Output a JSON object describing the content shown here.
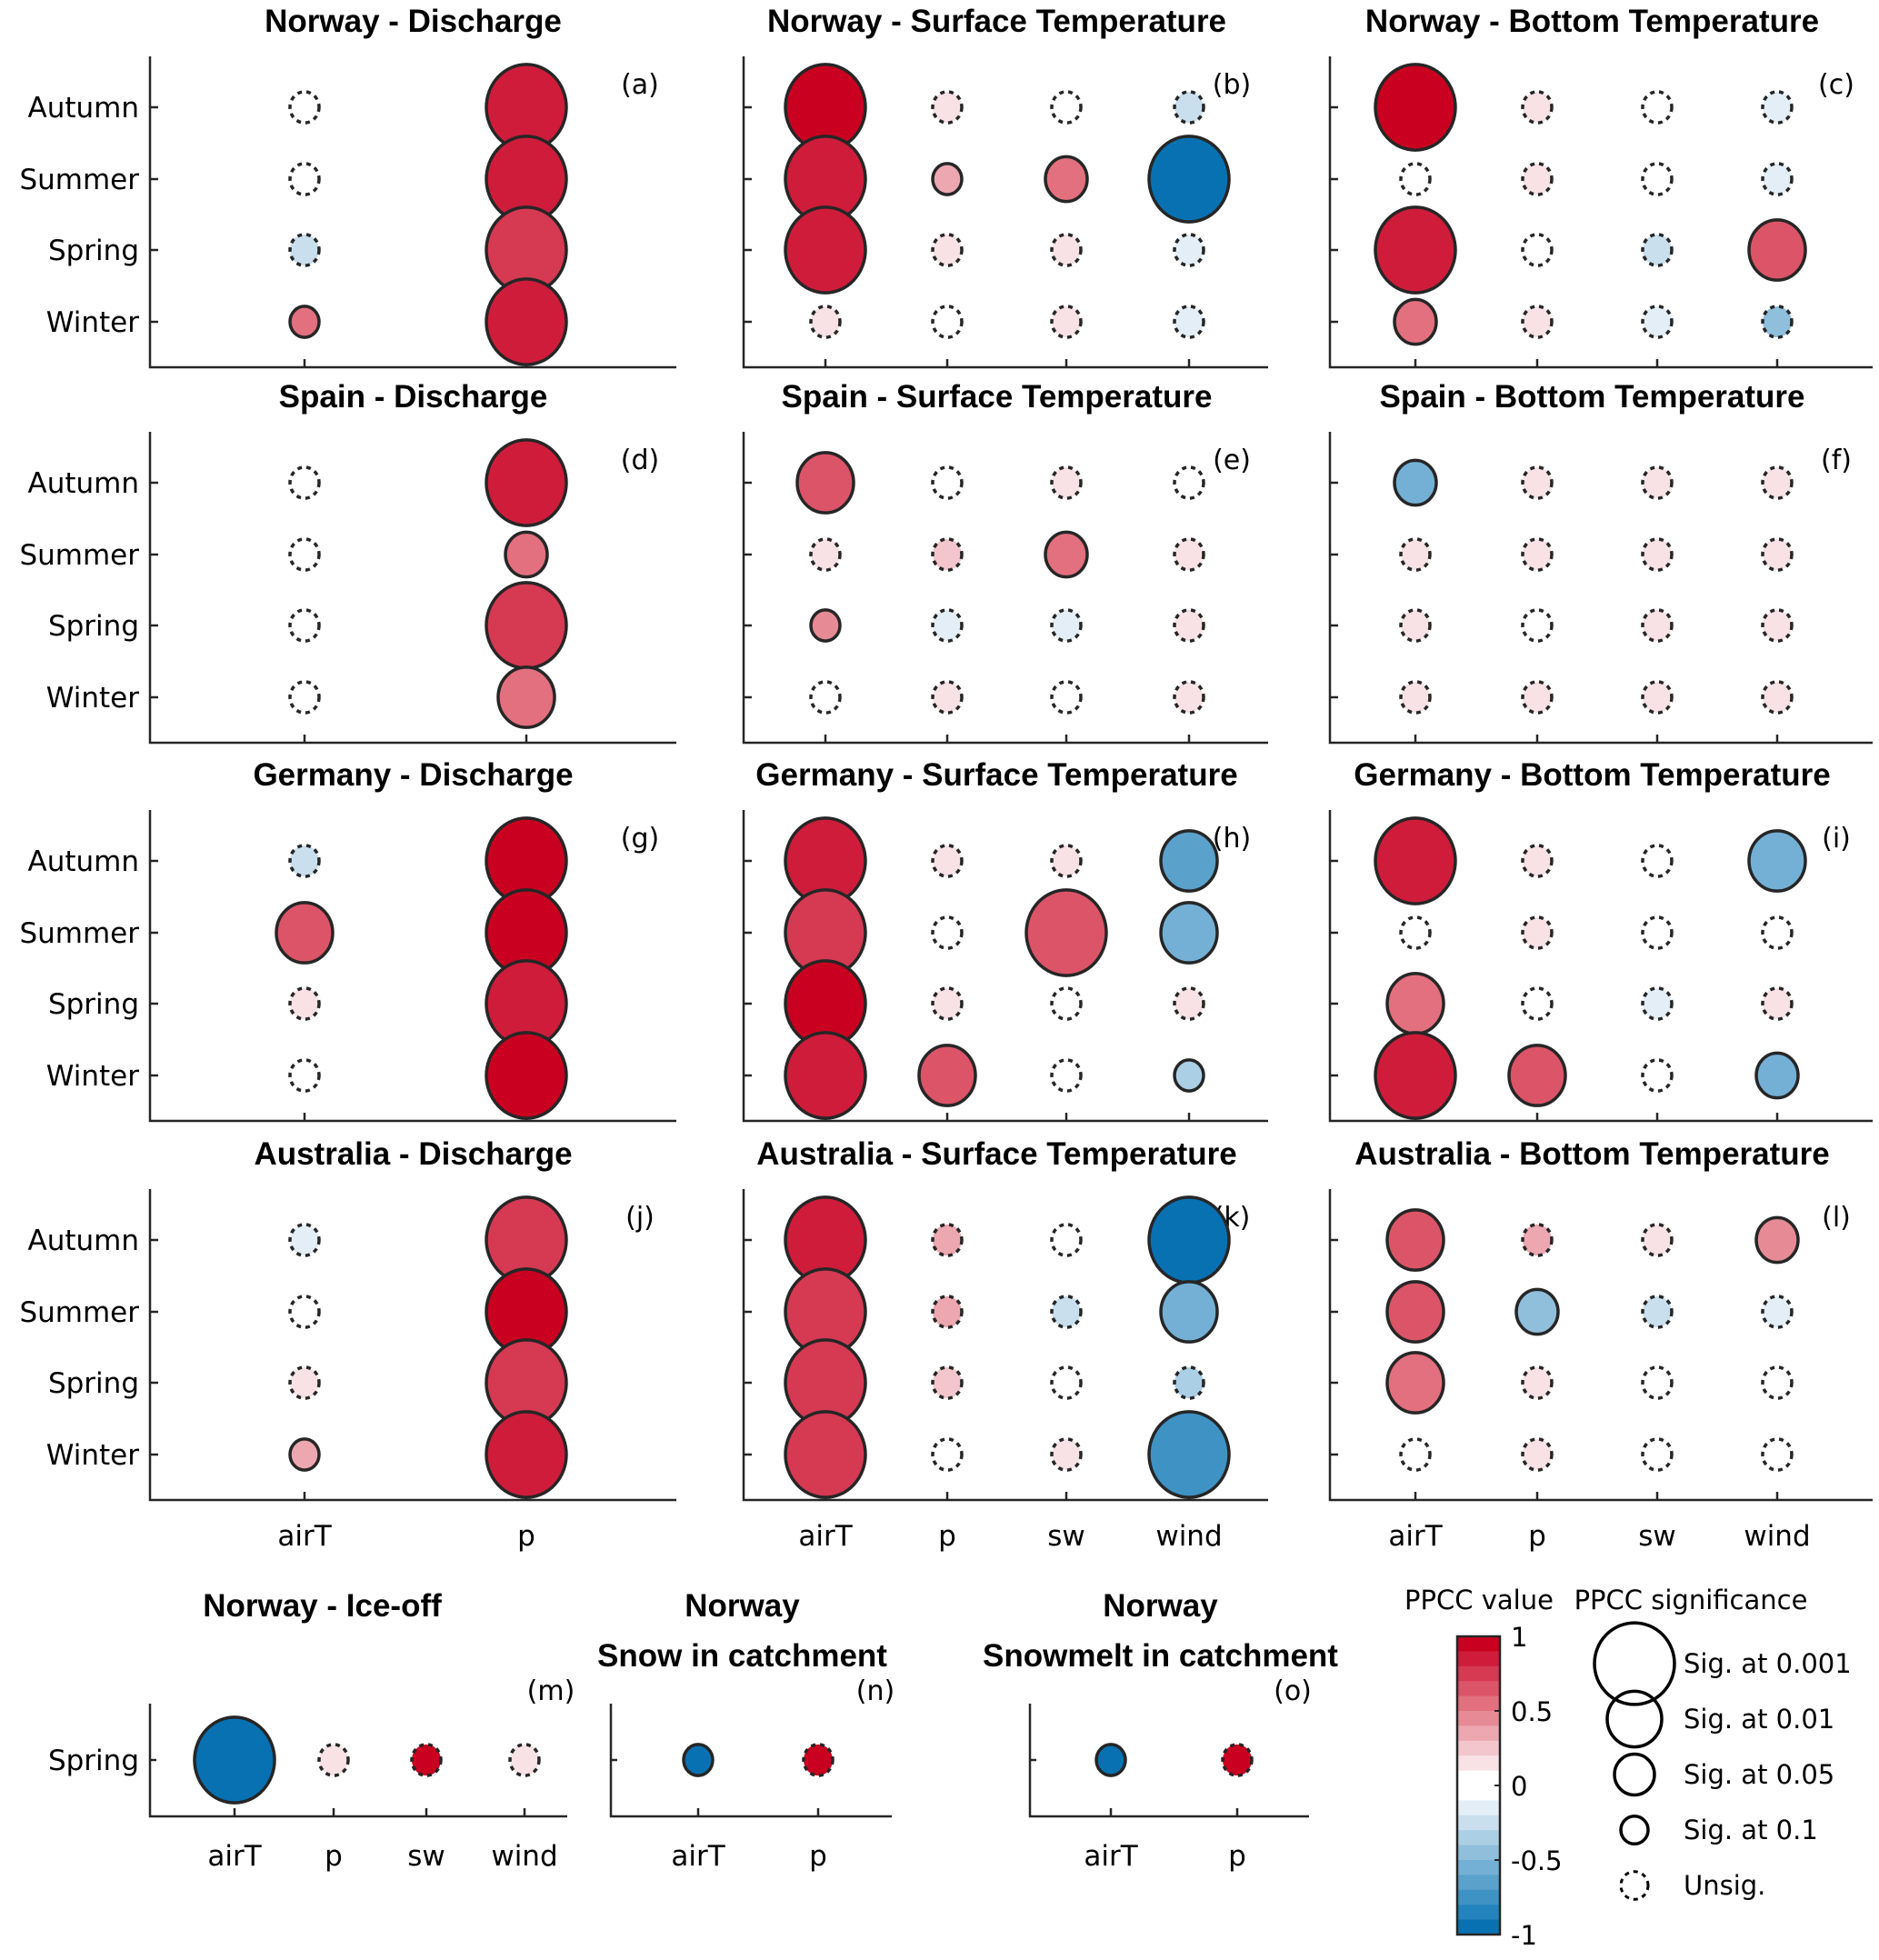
{
  "chart_data": {
    "type": "scatter",
    "encoding": "bubble grid: color = PPCC value (-1 to 1), size/outline = PPCC significance",
    "seasons": [
      "Winter",
      "Spring",
      "Summer",
      "Autumn"
    ],
    "significance_levels": [
      "0.001",
      "0.01",
      "0.05",
      "0.1",
      "unsig"
    ],
    "panels": [
      {
        "id": "a",
        "label": "(a)",
        "title": "Norway - Discharge",
        "x": [
          "airT",
          "p"
        ],
        "show_yticklabels": true,
        "show_xticklabels": false,
        "cells": {
          "Autumn": [
            [
              0.0,
              "unsig"
            ],
            [
              0.9,
              "0.001"
            ]
          ],
          "Summer": [
            [
              0.0,
              "unsig"
            ],
            [
              0.9,
              "0.001"
            ]
          ],
          "Spring": [
            [
              -0.2,
              "unsig"
            ],
            [
              0.8,
              "0.001"
            ]
          ],
          "Winter": [
            [
              0.6,
              "0.1"
            ],
            [
              0.9,
              "0.001"
            ]
          ]
        }
      },
      {
        "id": "b",
        "label": "(b)",
        "title": "Norway - Surface Temperature",
        "x": [
          "airT",
          "p",
          "sw",
          "wind"
        ],
        "show_yticklabels": false,
        "show_xticklabels": false,
        "cells": {
          "Autumn": [
            [
              1.0,
              "0.001"
            ],
            [
              0.2,
              "unsig"
            ],
            [
              0.0,
              "unsig"
            ],
            [
              -0.2,
              "unsig"
            ]
          ],
          "Summer": [
            [
              0.9,
              "0.001"
            ],
            [
              0.4,
              "0.1"
            ],
            [
              0.6,
              "0.05"
            ],
            [
              -0.9,
              "0.001"
            ]
          ],
          "Spring": [
            [
              0.9,
              "0.001"
            ],
            [
              0.1,
              "unsig"
            ],
            [
              0.1,
              "unsig"
            ],
            [
              -0.1,
              "unsig"
            ]
          ],
          "Winter": [
            [
              0.1,
              "unsig"
            ],
            [
              0.0,
              "unsig"
            ],
            [
              0.1,
              "unsig"
            ],
            [
              -0.1,
              "unsig"
            ]
          ]
        }
      },
      {
        "id": "c",
        "label": "(c)",
        "title": "Norway - Bottom Temperature",
        "x": [
          "airT",
          "p",
          "sw",
          "wind"
        ],
        "show_yticklabels": false,
        "show_xticklabels": false,
        "cells": {
          "Autumn": [
            [
              1.0,
              "0.001"
            ],
            [
              0.2,
              "unsig"
            ],
            [
              0.0,
              "unsig"
            ],
            [
              -0.1,
              "unsig"
            ]
          ],
          "Summer": [
            [
              0.0,
              "unsig"
            ],
            [
              0.2,
              "unsig"
            ],
            [
              0.0,
              "unsig"
            ],
            [
              -0.1,
              "unsig"
            ]
          ],
          "Spring": [
            [
              0.9,
              "0.001"
            ],
            [
              0.0,
              "unsig"
            ],
            [
              -0.2,
              "unsig"
            ],
            [
              0.7,
              "0.01"
            ]
          ],
          "Winter": [
            [
              0.6,
              "0.05"
            ],
            [
              0.1,
              "unsig"
            ],
            [
              -0.1,
              "unsig"
            ],
            [
              -0.4,
              "unsig"
            ]
          ]
        }
      },
      {
        "id": "d",
        "label": "(d)",
        "title": "Spain - Discharge",
        "x": [
          "airT",
          "p"
        ],
        "show_yticklabels": true,
        "show_xticklabels": false,
        "cells": {
          "Autumn": [
            [
              0.0,
              "unsig"
            ],
            [
              0.9,
              "0.001"
            ]
          ],
          "Summer": [
            [
              0.0,
              "unsig"
            ],
            [
              0.6,
              "0.05"
            ]
          ],
          "Spring": [
            [
              0.0,
              "unsig"
            ],
            [
              0.8,
              "0.001"
            ]
          ],
          "Winter": [
            [
              0.0,
              "unsig"
            ],
            [
              0.6,
              "0.01"
            ]
          ]
        }
      },
      {
        "id": "e",
        "label": "(e)",
        "title": "Spain - Surface Temperature",
        "x": [
          "airT",
          "p",
          "sw",
          "wind"
        ],
        "show_yticklabels": false,
        "show_xticklabels": false,
        "cells": {
          "Autumn": [
            [
              0.7,
              "0.01"
            ],
            [
              0.0,
              "unsig"
            ],
            [
              0.2,
              "unsig"
            ],
            [
              0.0,
              "unsig"
            ]
          ],
          "Summer": [
            [
              0.1,
              "unsig"
            ],
            [
              0.3,
              "unsig"
            ],
            [
              0.6,
              "0.05"
            ],
            [
              0.1,
              "unsig"
            ]
          ],
          "Spring": [
            [
              0.5,
              "0.1"
            ],
            [
              -0.1,
              "unsig"
            ],
            [
              -0.1,
              "unsig"
            ],
            [
              0.1,
              "unsig"
            ]
          ],
          "Winter": [
            [
              0.0,
              "unsig"
            ],
            [
              0.2,
              "unsig"
            ],
            [
              0.0,
              "unsig"
            ],
            [
              0.1,
              "unsig"
            ]
          ]
        }
      },
      {
        "id": "f",
        "label": "(f)",
        "title": "Spain - Bottom Temperature",
        "x": [
          "airT",
          "p",
          "sw",
          "wind"
        ],
        "show_yticklabels": false,
        "show_xticklabels": false,
        "cells": {
          "Autumn": [
            [
              -0.5,
              "0.05"
            ],
            [
              0.1,
              "unsig"
            ],
            [
              0.2,
              "unsig"
            ],
            [
              0.1,
              "unsig"
            ]
          ],
          "Summer": [
            [
              0.1,
              "unsig"
            ],
            [
              0.2,
              "unsig"
            ],
            [
              0.1,
              "unsig"
            ],
            [
              0.1,
              "unsig"
            ]
          ],
          "Spring": [
            [
              0.1,
              "unsig"
            ],
            [
              0.0,
              "unsig"
            ],
            [
              0.1,
              "unsig"
            ],
            [
              0.1,
              "unsig"
            ]
          ],
          "Winter": [
            [
              0.2,
              "unsig"
            ],
            [
              0.1,
              "unsig"
            ],
            [
              0.1,
              "unsig"
            ],
            [
              0.1,
              "unsig"
            ]
          ]
        }
      },
      {
        "id": "g",
        "label": "(g)",
        "title": "Germany - Discharge",
        "x": [
          "airT",
          "p"
        ],
        "show_yticklabels": true,
        "show_xticklabels": false,
        "cells": {
          "Autumn": [
            [
              -0.2,
              "unsig"
            ],
            [
              1.0,
              "0.001"
            ]
          ],
          "Summer": [
            [
              0.7,
              "0.01"
            ],
            [
              1.0,
              "0.001"
            ]
          ],
          "Spring": [
            [
              0.2,
              "unsig"
            ],
            [
              0.9,
              "0.001"
            ]
          ],
          "Winter": [
            [
              0.0,
              "unsig"
            ],
            [
              1.0,
              "0.001"
            ]
          ]
        }
      },
      {
        "id": "h",
        "label": "(h)",
        "title": "Germany - Surface Temperature",
        "x": [
          "airT",
          "p",
          "sw",
          "wind"
        ],
        "show_yticklabels": false,
        "show_xticklabels": false,
        "cells": {
          "Autumn": [
            [
              0.9,
              "0.001"
            ],
            [
              0.2,
              "unsig"
            ],
            [
              0.1,
              "unsig"
            ],
            [
              -0.6,
              "0.01"
            ]
          ],
          "Summer": [
            [
              0.8,
              "0.001"
            ],
            [
              0.0,
              "unsig"
            ],
            [
              0.7,
              "0.001"
            ],
            [
              -0.5,
              "0.01"
            ]
          ],
          "Spring": [
            [
              1.0,
              "0.001"
            ],
            [
              0.1,
              "unsig"
            ],
            [
              0.0,
              "unsig"
            ],
            [
              0.1,
              "unsig"
            ]
          ],
          "Winter": [
            [
              0.9,
              "0.001"
            ],
            [
              0.7,
              "0.01"
            ],
            [
              0.0,
              "unsig"
            ],
            [
              -0.3,
              "0.1"
            ]
          ]
        }
      },
      {
        "id": "i",
        "label": "(i)",
        "title": "Germany - Bottom Temperature",
        "x": [
          "airT",
          "p",
          "sw",
          "wind"
        ],
        "show_yticklabels": false,
        "show_xticklabels": false,
        "cells": {
          "Autumn": [
            [
              0.9,
              "0.001"
            ],
            [
              0.1,
              "unsig"
            ],
            [
              0.0,
              "unsig"
            ],
            [
              -0.5,
              "0.01"
            ]
          ],
          "Summer": [
            [
              0.0,
              "unsig"
            ],
            [
              0.2,
              "unsig"
            ],
            [
              0.0,
              "unsig"
            ],
            [
              0.0,
              "unsig"
            ]
          ],
          "Spring": [
            [
              0.6,
              "0.01"
            ],
            [
              0.0,
              "unsig"
            ],
            [
              -0.1,
              "unsig"
            ],
            [
              0.2,
              "unsig"
            ]
          ],
          "Winter": [
            [
              0.9,
              "0.001"
            ],
            [
              0.7,
              "0.01"
            ],
            [
              0.0,
              "unsig"
            ],
            [
              -0.5,
              "0.05"
            ]
          ]
        }
      },
      {
        "id": "j",
        "label": "(j)",
        "title": "Australia - Discharge",
        "x": [
          "airT",
          "p"
        ],
        "show_yticklabels": true,
        "show_xticklabels": true,
        "cells": {
          "Autumn": [
            [
              -0.1,
              "unsig"
            ],
            [
              0.8,
              "0.001"
            ]
          ],
          "Summer": [
            [
              0.0,
              "unsig"
            ],
            [
              1.0,
              "0.001"
            ]
          ],
          "Spring": [
            [
              0.1,
              "unsig"
            ],
            [
              0.8,
              "0.001"
            ]
          ],
          "Winter": [
            [
              0.4,
              "0.1"
            ],
            [
              0.9,
              "0.001"
            ]
          ]
        }
      },
      {
        "id": "k",
        "label": "(k)",
        "title": "Australia - Surface Temperature",
        "x": [
          "airT",
          "p",
          "sw",
          "wind"
        ],
        "show_yticklabels": false,
        "show_xticklabels": true,
        "cells": {
          "Autumn": [
            [
              0.9,
              "0.001"
            ],
            [
              0.4,
              "unsig"
            ],
            [
              0.0,
              "unsig"
            ],
            [
              -0.9,
              "0.001"
            ]
          ],
          "Summer": [
            [
              0.8,
              "0.001"
            ],
            [
              0.4,
              "unsig"
            ],
            [
              -0.2,
              "unsig"
            ],
            [
              -0.5,
              "0.01"
            ]
          ],
          "Spring": [
            [
              0.8,
              "0.001"
            ],
            [
              0.3,
              "unsig"
            ],
            [
              0.0,
              "unsig"
            ],
            [
              -0.3,
              "unsig"
            ]
          ],
          "Winter": [
            [
              0.8,
              "0.001"
            ],
            [
              0.0,
              "unsig"
            ],
            [
              0.2,
              "unsig"
            ],
            [
              -0.7,
              "0.001"
            ]
          ]
        }
      },
      {
        "id": "l",
        "label": "(l)",
        "title": "Australia - Bottom Temperature",
        "x": [
          "airT",
          "p",
          "sw",
          "wind"
        ],
        "show_yticklabels": false,
        "show_xticklabels": true,
        "cells": {
          "Autumn": [
            [
              0.7,
              "0.01"
            ],
            [
              0.4,
              "unsig"
            ],
            [
              0.1,
              "unsig"
            ],
            [
              0.5,
              "0.05"
            ]
          ],
          "Summer": [
            [
              0.7,
              "0.01"
            ],
            [
              -0.4,
              "0.05"
            ],
            [
              -0.2,
              "unsig"
            ],
            [
              -0.1,
              "unsig"
            ]
          ],
          "Spring": [
            [
              0.6,
              "0.01"
            ],
            [
              0.1,
              "unsig"
            ],
            [
              0.0,
              "unsig"
            ],
            [
              0.0,
              "unsig"
            ]
          ],
          "Winter": [
            [
              0.0,
              "unsig"
            ],
            [
              0.2,
              "unsig"
            ],
            [
              0.0,
              "unsig"
            ],
            [
              0.0,
              "unsig"
            ]
          ]
        }
      }
    ],
    "bottom_panels": [
      {
        "id": "m",
        "label": "(m)",
        "title_lines": [
          "Norway - Ice-off"
        ],
        "x": [
          "airT",
          "p",
          "sw",
          "wind"
        ],
        "season": "Spring",
        "cells": [
          [
            -1.0,
            "0.001"
          ],
          [
            0.2,
            "unsig"
          ],
          [
            1.0,
            "unsig"
          ],
          [
            0.2,
            "unsig"
          ]
        ]
      },
      {
        "id": "n",
        "label": "(n)",
        "title_lines": [
          "Norway",
          "Snow in catchment"
        ],
        "x": [
          "airT",
          "p"
        ],
        "season": "Spring",
        "cells": [
          [
            -1.0,
            "0.1"
          ],
          [
            1.0,
            "unsig"
          ]
        ]
      },
      {
        "id": "o",
        "label": "(o)",
        "title_lines": [
          "Norway",
          "Snowmelt in catchment"
        ],
        "x": [
          "airT",
          "p"
        ],
        "season": "Spring",
        "cells": [
          [
            -1.0,
            "0.1"
          ],
          [
            1.0,
            "unsig"
          ]
        ]
      }
    ],
    "colorbar": {
      "title": "PPCC value",
      "range": [
        -1,
        1
      ],
      "ticks": [
        "1",
        "0.5",
        "0",
        "-0.5",
        "-1"
      ],
      "tick_values": [
        1,
        0.5,
        0,
        -0.5,
        -1
      ],
      "colors_top_to_bottom": [
        "#ca0020",
        "#cf1c3b",
        "#d63952",
        "#dc5468",
        "#e3707e",
        "#e68b96",
        "#eca7b0",
        "#f2c6cc",
        "#f8e2e6",
        "#ffffff",
        "#ffffff",
        "#e3eef6",
        "#c9dfee",
        "#abcfe5",
        "#90bfdc",
        "#74b0d5",
        "#5aa1cc",
        "#3f92c4",
        "#2383bd",
        "#0871b2"
      ]
    },
    "legend": {
      "title": "PPCC significance",
      "entries": [
        {
          "label": "Sig. at 0.001",
          "level": "0.001"
        },
        {
          "label": "Sig. at 0.01",
          "level": "0.01"
        },
        {
          "label": "Sig. at 0.05",
          "level": "0.05"
        },
        {
          "label": "Sig. at 0.1",
          "level": "0.1"
        },
        {
          "label": "Unsig.",
          "level": "unsig"
        }
      ]
    }
  }
}
